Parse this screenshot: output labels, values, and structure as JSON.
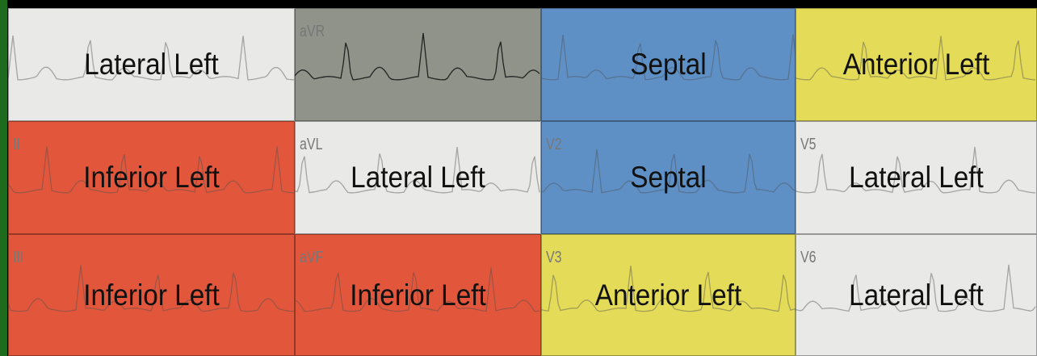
{
  "rows": [
    [
      {
        "label": "Lateral Left"
      },
      {
        "label": "",
        "lead": "aVR"
      },
      {
        "label": "Septal"
      },
      {
        "label": "Anterior Left"
      }
    ],
    [
      {
        "label": "Inferior Left",
        "lead": "II"
      },
      {
        "label": "Lateral Left",
        "lead": "aVL"
      },
      {
        "label": "Septal",
        "lead": "V2"
      },
      {
        "label": "Lateral Left",
        "lead": "V5"
      }
    ],
    [
      {
        "label": "Inferior Left",
        "lead": "III"
      },
      {
        "label": "Inferior Left",
        "lead": "aVF"
      },
      {
        "label": "Anterior Left",
        "lead": "V3"
      },
      {
        "label": "Lateral Left",
        "lead": "V6"
      }
    ]
  ]
}
